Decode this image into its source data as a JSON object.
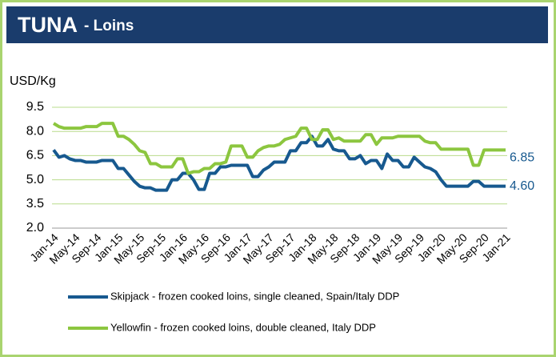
{
  "chart_data": {
    "type": "line",
    "title": "TUNA",
    "subtitle": "- Loins",
    "y_label": "USD/Kg",
    "categories": [
      "Jan-14",
      null,
      null,
      null,
      "May-14",
      null,
      null,
      null,
      "Sep-14",
      null,
      null,
      null,
      "Jan-15",
      null,
      null,
      null,
      "May-15",
      null,
      null,
      null,
      "Sep-15",
      null,
      null,
      null,
      "Jan-16",
      null,
      null,
      null,
      "May-16",
      null,
      null,
      null,
      "Sep-16",
      null,
      null,
      null,
      "Jan-17",
      null,
      null,
      null,
      "May-17",
      null,
      null,
      null,
      "Sep-17",
      null,
      null,
      null,
      "Jan-18",
      null,
      null,
      null,
      "May-18",
      null,
      null,
      null,
      "Sep-18",
      null,
      null,
      null,
      "Jan-19",
      null,
      null,
      null,
      "May-19",
      null,
      null,
      null,
      "Sep-19",
      null,
      null,
      null,
      "Jan-20",
      null,
      null,
      null,
      "May-20",
      null,
      null,
      null,
      "Sep-20",
      null,
      null,
      null,
      "Jan-21"
    ],
    "series": [
      {
        "name": "Skipjack - frozen cooked loins, single cleaned, Spain/Italy DDP",
        "color": "#17598f",
        "values": [
          6.85,
          6.4,
          6.5,
          6.3,
          6.2,
          6.2,
          6.1,
          6.1,
          6.1,
          6.2,
          6.2,
          6.2,
          5.7,
          5.7,
          5.3,
          4.9,
          4.6,
          4.5,
          4.5,
          4.35,
          4.35,
          4.35,
          5.0,
          5.0,
          5.4,
          5.4,
          5.0,
          4.4,
          4.4,
          5.4,
          5.4,
          5.8,
          5.8,
          5.9,
          5.9,
          5.9,
          5.9,
          5.2,
          5.2,
          5.6,
          5.8,
          6.1,
          6.1,
          6.1,
          6.8,
          6.8,
          7.3,
          7.3,
          7.7,
          7.1,
          7.1,
          7.5,
          6.9,
          6.8,
          6.8,
          6.3,
          6.3,
          6.5,
          6.0,
          6.2,
          6.2,
          5.7,
          6.6,
          6.2,
          6.2,
          5.8,
          5.8,
          6.4,
          6.1,
          5.8,
          5.7,
          5.5,
          5.0,
          4.6,
          4.6,
          4.6,
          4.6,
          4.6,
          4.9,
          4.9,
          4.6,
          4.6,
          4.6,
          4.6,
          4.6
        ],
        "end_label": {
          "value": 4.6,
          "label": "4.60"
        }
      },
      {
        "name": "Yellowfin - frozen cooked loins, double cleaned, Italy DDP",
        "color": "#8cc63f",
        "values": [
          8.5,
          8.3,
          8.2,
          8.2,
          8.2,
          8.2,
          8.3,
          8.3,
          8.3,
          8.5,
          8.5,
          8.5,
          7.7,
          7.7,
          7.5,
          7.2,
          6.8,
          6.7,
          6.0,
          6.0,
          5.8,
          5.8,
          5.8,
          6.3,
          6.3,
          5.4,
          5.5,
          5.5,
          5.7,
          5.7,
          6.0,
          6.0,
          6.1,
          7.1,
          7.1,
          7.1,
          6.4,
          6.4,
          6.8,
          7.0,
          7.1,
          7.1,
          7.2,
          7.5,
          7.6,
          7.7,
          8.2,
          8.2,
          7.5,
          7.5,
          8.1,
          8.1,
          7.5,
          7.6,
          7.4,
          7.4,
          7.4,
          7.4,
          7.8,
          7.8,
          7.2,
          7.6,
          7.6,
          7.6,
          7.7,
          7.7,
          7.7,
          7.7,
          7.7,
          7.4,
          7.3,
          7.3,
          6.9,
          6.9,
          6.9,
          6.9,
          6.9,
          6.9,
          5.9,
          5.9,
          6.85,
          6.85,
          6.85,
          6.85,
          6.85
        ],
        "end_label": {
          "value": 6.85,
          "label": "6.85"
        }
      }
    ],
    "ylim": [
      2,
      9.5
    ],
    "yticks": [
      {
        "value": 2,
        "label": "2.0"
      },
      {
        "value": 3.5,
        "label": "3.5"
      },
      {
        "value": 5,
        "label": "5.0"
      },
      {
        "value": 6.5,
        "label": "6.5"
      },
      {
        "value": 8,
        "label": "8.0"
      },
      {
        "value": 9.5,
        "label": "9.5"
      }
    ],
    "grid": true,
    "legend": "bottom"
  }
}
